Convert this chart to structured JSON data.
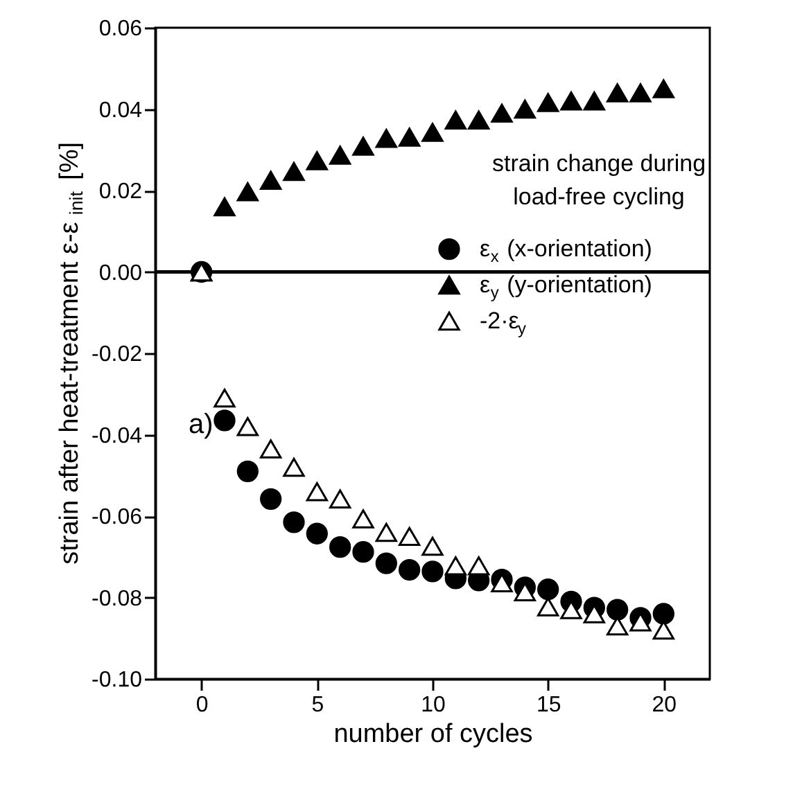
{
  "chart_data": {
    "type": "scatter",
    "xlabel": "number of cycles",
    "ylabel": "strain after heat-treatment ε-ε$_{init}$ [%]",
    "x": [
      0,
      1,
      2,
      3,
      4,
      5,
      6,
      7,
      8,
      9,
      10,
      11,
      12,
      13,
      14,
      15,
      16,
      17,
      18,
      19,
      20
    ],
    "series": [
      {
        "name": "ε$_{x}$ (x-orientation)",
        "color": "#000000",
        "marker": "circle",
        "values": [
          0,
          -0.0365,
          -0.049,
          -0.0558,
          -0.0615,
          -0.0643,
          -0.0676,
          -0.0688,
          -0.0716,
          -0.0732,
          -0.0736,
          -0.0753,
          -0.0758,
          -0.0756,
          -0.0775,
          -0.078,
          -0.081,
          -0.0825,
          -0.083,
          -0.085,
          -0.084
        ]
      },
      {
        "name": "ε$_{y}$ (y-orientation)",
        "color": "#000000",
        "marker": "triangle",
        "values": [
          0,
          0.016,
          0.0197,
          0.0225,
          0.0247,
          0.0273,
          0.0287,
          0.0309,
          0.0328,
          0.0331,
          0.0343,
          0.0373,
          0.0373,
          0.039,
          0.04,
          0.0416,
          0.042,
          0.042,
          0.044,
          0.044,
          0.045
        ]
      },
      {
        "name": "-2·ε$_{y}$",
        "color": "#ffffff",
        "marker": "triangle",
        "values": [
          0,
          -0.031,
          -0.038,
          -0.0435,
          -0.048,
          -0.054,
          -0.0558,
          -0.0607,
          -0.064,
          -0.065,
          -0.0674,
          -0.0722,
          -0.0722,
          -0.0764,
          -0.0786,
          -0.0823,
          -0.083,
          -0.084,
          -0.087,
          -0.086,
          -0.088
        ]
      }
    ],
    "xlim": [
      -2,
      22
    ],
    "xticks": [
      0,
      5,
      10,
      15,
      20
    ],
    "ylim": [
      -0.1,
      0.06
    ],
    "yticks": [
      {
        "value": -0.1,
        "label": "-0.10"
      },
      {
        "value": -0.08,
        "label": "-0.08"
      },
      {
        "value": -0.06,
        "label": "-0.06"
      },
      {
        "value": -0.04,
        "label": "-0.04"
      },
      {
        "value": -0.02,
        "label": "-0.02"
      },
      {
        "value": 0,
        "label": "0.00"
      },
      {
        "value": 0.02,
        "label": "0.02"
      },
      {
        "value": 0.04,
        "label": "0.04"
      },
      {
        "value": 0.06,
        "label": "0.06"
      }
    ],
    "ref_lines": [
      {
        "axis": "y",
        "value": 0,
        "color": "#000000"
      }
    ],
    "annotations": [
      "strain change during\nload-free cycling",
      "a)"
    ],
    "legend": "right",
    "grid": false
  }
}
